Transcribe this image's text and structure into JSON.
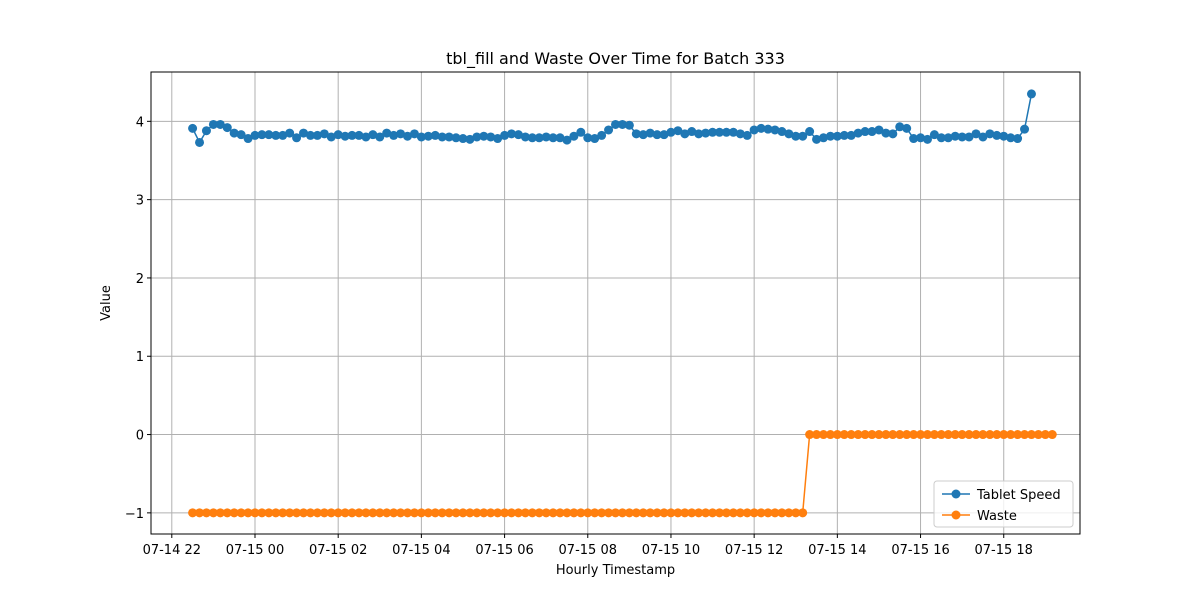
{
  "chart_data": {
    "type": "line",
    "title": "tbl_fill and Waste Over Time for Batch 333",
    "xlabel": "Hourly Timestamp",
    "ylabel": "Value",
    "x_start": "2024-07-14 22:30",
    "x_step_minutes": 10,
    "xlim": [
      "2024-07-14 21:30",
      "2024-07-15 19:50"
    ],
    "ylim": [
      -1.27,
      4.63
    ],
    "x_ticks": [
      {
        "time": "2024-07-14 22:00",
        "label": "07-14 22"
      },
      {
        "time": "2024-07-15 00:00",
        "label": "07-15 00"
      },
      {
        "time": "2024-07-15 02:00",
        "label": "07-15 02"
      },
      {
        "time": "2024-07-15 04:00",
        "label": "07-15 04"
      },
      {
        "time": "2024-07-15 06:00",
        "label": "07-15 06"
      },
      {
        "time": "2024-07-15 08:00",
        "label": "07-15 08"
      },
      {
        "time": "2024-07-15 10:00",
        "label": "07-15 10"
      },
      {
        "time": "2024-07-15 12:00",
        "label": "07-15 12"
      },
      {
        "time": "2024-07-15 14:00",
        "label": "07-15 14"
      },
      {
        "time": "2024-07-15 16:00",
        "label": "07-15 16"
      },
      {
        "time": "2024-07-15 18:00",
        "label": "07-15 18"
      }
    ],
    "y_ticks": [
      {
        "value": -1,
        "label": "−1"
      },
      {
        "value": 0,
        "label": "0"
      },
      {
        "value": 1,
        "label": "1"
      },
      {
        "value": 2,
        "label": "2"
      },
      {
        "value": 3,
        "label": "3"
      },
      {
        "value": 4,
        "label": "4"
      }
    ],
    "grid": true,
    "legend_position": "bottom-right",
    "series": [
      {
        "name": "Tablet Speed",
        "color": "#1f77b4",
        "marker": "circle",
        "values": [
          3.91,
          3.73,
          3.88,
          3.96,
          3.96,
          3.92,
          3.85,
          3.83,
          3.78,
          3.82,
          3.83,
          3.83,
          3.82,
          3.82,
          3.85,
          3.79,
          3.85,
          3.82,
          3.82,
          3.84,
          3.8,
          3.83,
          3.81,
          3.82,
          3.82,
          3.8,
          3.83,
          3.8,
          3.85,
          3.82,
          3.84,
          3.81,
          3.84,
          3.8,
          3.81,
          3.82,
          3.8,
          3.8,
          3.79,
          3.78,
          3.77,
          3.8,
          3.81,
          3.8,
          3.78,
          3.82,
          3.84,
          3.83,
          3.8,
          3.79,
          3.79,
          3.8,
          3.79,
          3.79,
          3.76,
          3.81,
          3.86,
          3.79,
          3.78,
          3.82,
          3.89,
          3.96,
          3.96,
          3.95,
          3.84,
          3.83,
          3.85,
          3.83,
          3.83,
          3.86,
          3.88,
          3.84,
          3.87,
          3.84,
          3.85,
          3.86,
          3.86,
          3.86,
          3.86,
          3.84,
          3.82,
          3.89,
          3.91,
          3.9,
          3.89,
          3.87,
          3.84,
          3.81,
          3.81,
          3.87,
          3.77,
          3.79,
          3.81,
          3.81,
          3.82,
          3.82,
          3.85,
          3.87,
          3.87,
          3.89,
          3.85,
          3.84,
          3.93,
          3.91,
          3.78,
          3.79,
          3.77,
          3.83,
          3.79,
          3.79,
          3.81,
          3.8,
          3.8,
          3.84,
          3.8,
          3.84,
          3.82,
          3.81,
          3.79,
          3.78,
          3.9,
          4.35
        ]
      },
      {
        "name": "Waste",
        "color": "#ff7f0e",
        "marker": "circle",
        "values": [
          -1,
          -1,
          -1,
          -1,
          -1,
          -1,
          -1,
          -1,
          -1,
          -1,
          -1,
          -1,
          -1,
          -1,
          -1,
          -1,
          -1,
          -1,
          -1,
          -1,
          -1,
          -1,
          -1,
          -1,
          -1,
          -1,
          -1,
          -1,
          -1,
          -1,
          -1,
          -1,
          -1,
          -1,
          -1,
          -1,
          -1,
          -1,
          -1,
          -1,
          -1,
          -1,
          -1,
          -1,
          -1,
          -1,
          -1,
          -1,
          -1,
          -1,
          -1,
          -1,
          -1,
          -1,
          -1,
          -1,
          -1,
          -1,
          -1,
          -1,
          -1,
          -1,
          -1,
          -1,
          -1,
          -1,
          -1,
          -1,
          -1,
          -1,
          -1,
          -1,
          -1,
          -1,
          -1,
          -1,
          -1,
          -1,
          -1,
          -1,
          -1,
          -1,
          -1,
          -1,
          -1,
          -1,
          -1,
          -1,
          -1,
          0,
          0,
          0,
          0,
          0,
          0,
          0,
          0,
          0,
          0,
          0,
          0,
          0,
          0,
          0,
          0,
          0,
          0,
          0,
          0,
          0,
          0,
          0,
          0,
          0,
          0,
          0,
          0,
          0,
          0,
          0,
          0,
          0,
          0,
          0,
          0
        ]
      }
    ]
  }
}
